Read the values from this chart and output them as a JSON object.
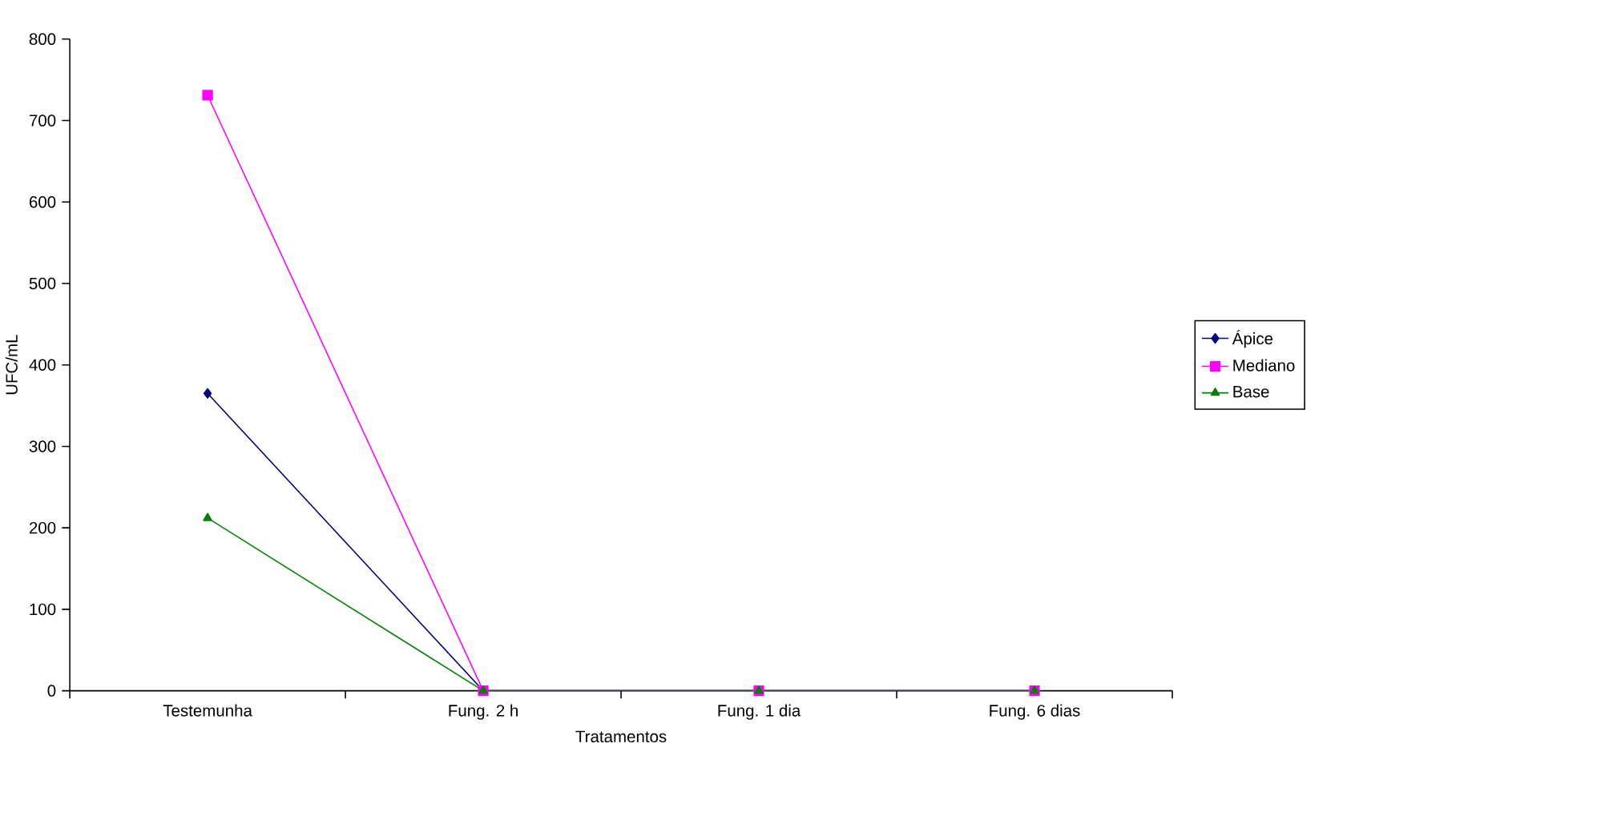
{
  "chart_data": {
    "type": "line",
    "xlabel": "Tratamentos",
    "ylabel": "UFC/mL",
    "categories": [
      "Testemunha",
      "Fung. 2 h",
      "Fung. 1 dia",
      "Fung. 6 dias"
    ],
    "series": [
      {
        "name": "Ápice",
        "color": "#000080",
        "marker": "diamond",
        "values": [
          365,
          0,
          0,
          0
        ]
      },
      {
        "name": "Mediano",
        "color": "#ff00ff",
        "marker": "square",
        "values": [
          731,
          0,
          0,
          0
        ]
      },
      {
        "name": "Base",
        "color": "#008000",
        "marker": "triangle",
        "values": [
          212,
          0,
          0,
          0
        ]
      }
    ],
    "ylim": [
      0,
      800
    ],
    "yticks": [
      0,
      100,
      200,
      300,
      400,
      500,
      600,
      700,
      800
    ],
    "grid": false,
    "legend": "right"
  }
}
